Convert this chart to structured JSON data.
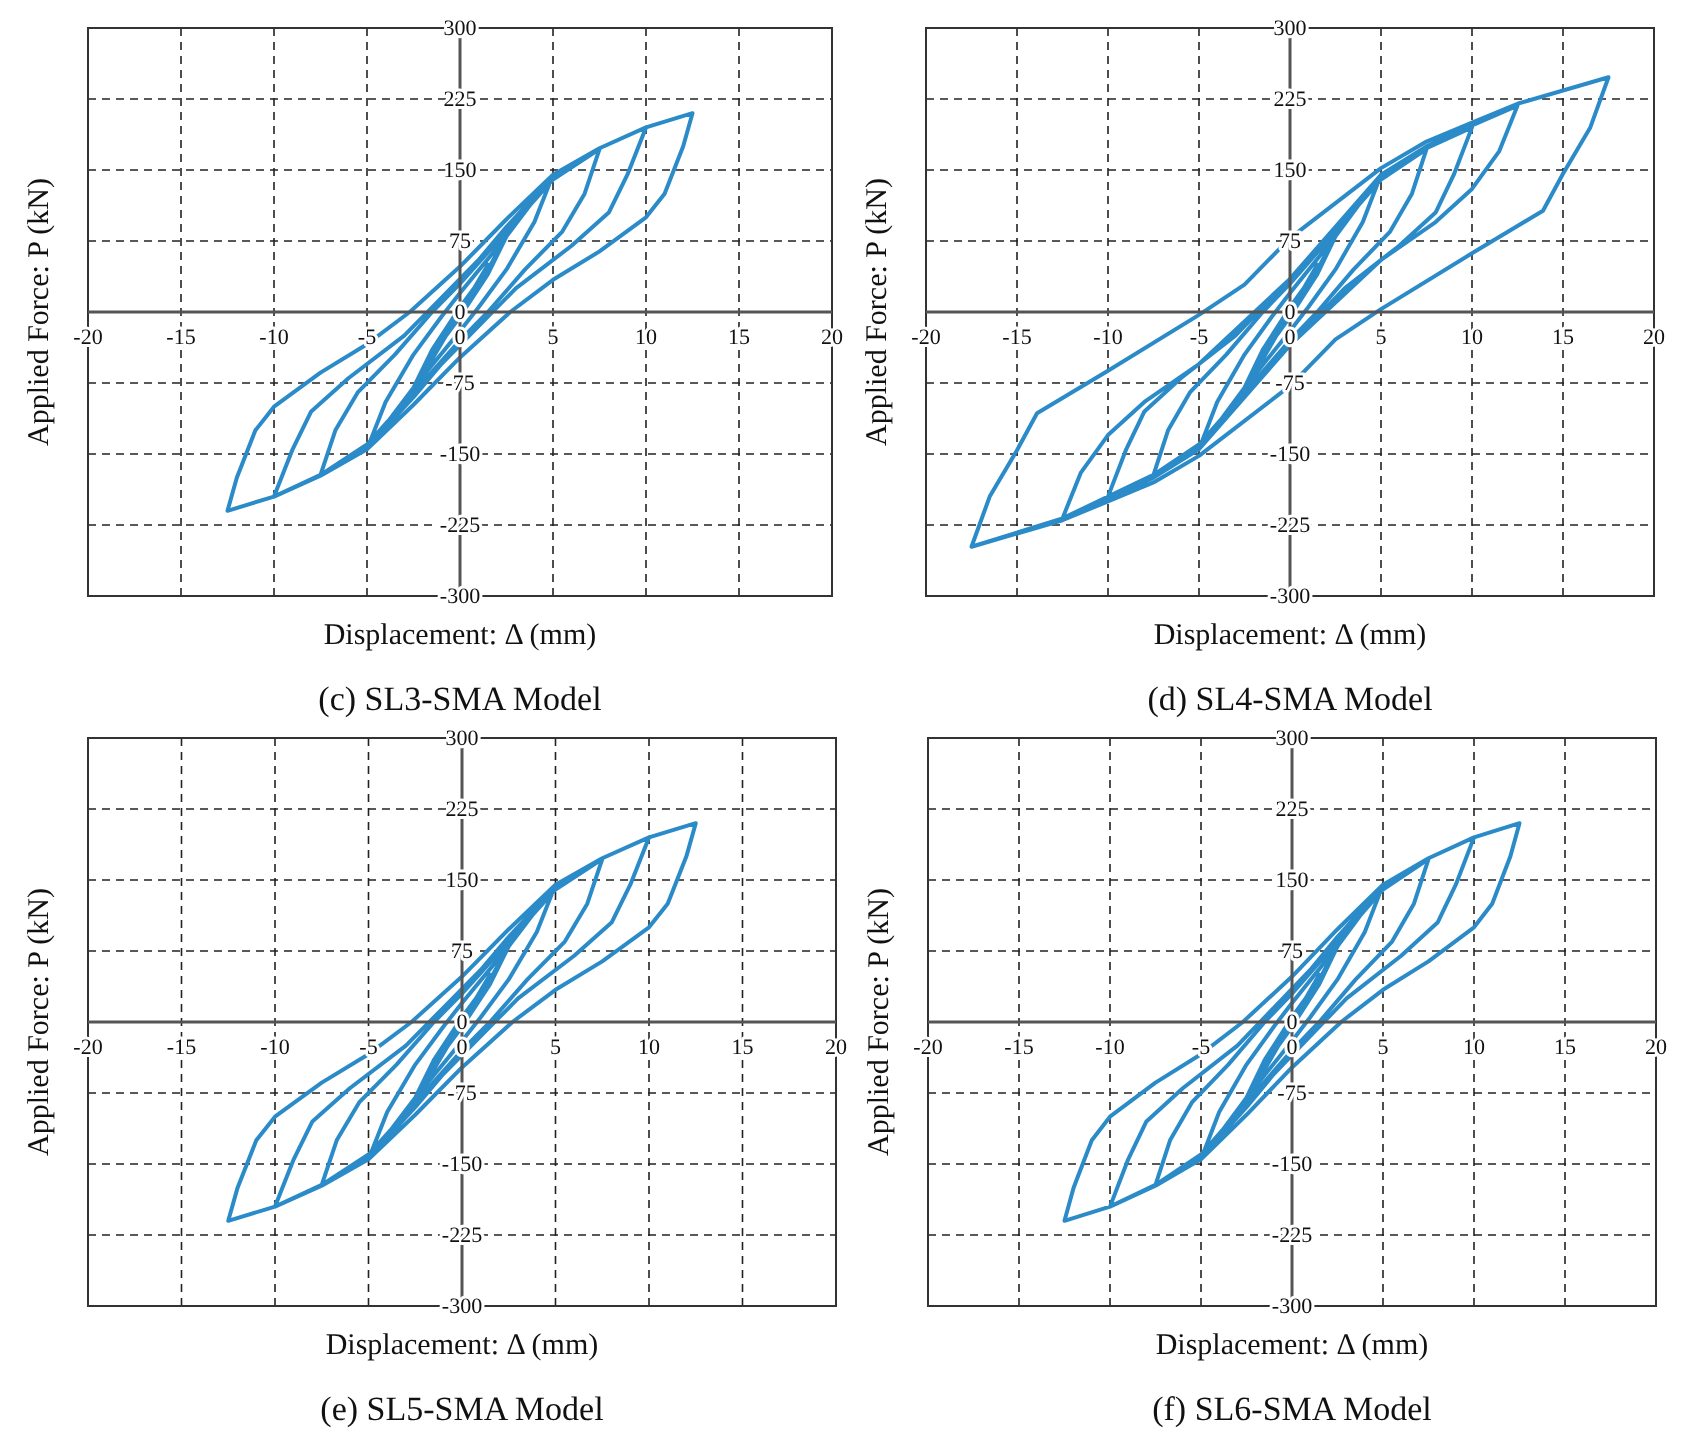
{
  "chart_data": [
    {
      "type": "line",
      "title": "(c) SL3-SMA Model",
      "xlabel": "Displacement: Δ (mm)",
      "ylabel": "Applied Force: P (kN)",
      "xlim": [
        -20,
        20
      ],
      "xticks": [
        -20,
        -15,
        -10,
        -5,
        0,
        5,
        10,
        15,
        20
      ],
      "ylim": [
        -300,
        300
      ],
      "yticks": [
        -300,
        -225,
        -150,
        -75,
        0,
        75,
        150,
        225,
        300
      ],
      "grid": true,
      "x": [
        0,
        -1.5,
        0,
        1.5,
        0,
        -1.5,
        -2.5,
        -1.5,
        0,
        1.5,
        2.5,
        1.5,
        0,
        -1.5,
        -2.5,
        -5,
        -4,
        -2.5,
        -1,
        0,
        2.5,
        5,
        4,
        2.5,
        1,
        0,
        -2.5,
        -5,
        -7.5,
        -6.7,
        -5.5,
        -3.5,
        -1.5,
        0,
        2.5,
        5,
        7.5,
        6.7,
        5.5,
        3.5,
        1.5,
        0,
        -2.5,
        -5,
        -7.5,
        -10,
        -9,
        -8,
        -6,
        -3,
        -1,
        1,
        2.5,
        5,
        7.5,
        10,
        9,
        8,
        6,
        3,
        1,
        -1,
        -2.5,
        -5,
        -7.5,
        -10,
        -12.5,
        -12,
        -11,
        -10,
        -7.5,
        -5,
        -2.7,
        0,
        2.5,
        5,
        7.5,
        10,
        12.5,
        12,
        11,
        10,
        7.5,
        5,
        2.7,
        0,
        -2.5,
        -5,
        -7.5,
        -10,
        -12.5
      ],
      "series": [
        {
          "color": "#2b8bc8",
          "values": [
            0,
            -50,
            0,
            50,
            0,
            -50,
            -80,
            -40,
            5,
            45,
            80,
            40,
            -5,
            -45,
            -80,
            -145,
            -95,
            -45,
            -5,
            20,
            80,
            145,
            95,
            45,
            5,
            -20,
            -80,
            -145,
            -172,
            -125,
            -85,
            -45,
            0,
            30,
            85,
            140,
            172,
            125,
            85,
            45,
            0,
            -30,
            -85,
            -140,
            -172,
            -195,
            -145,
            -105,
            -70,
            -25,
            15,
            55,
            90,
            143,
            173,
            195,
            145,
            105,
            70,
            25,
            -15,
            -55,
            -90,
            -143,
            -173,
            -195,
            -210,
            -175,
            -125,
            -100,
            -64,
            -34,
            0,
            48,
            98,
            145,
            173,
            195,
            210,
            175,
            125,
            100,
            64,
            34,
            0,
            -48,
            -98,
            -145,
            -173,
            -195,
            -210
          ]
        }
      ]
    },
    {
      "type": "line",
      "title": "(d) SL4-SMA Model",
      "xlabel": "Displacement: Δ (mm)",
      "ylabel": "Applied Force: P (kN)",
      "xlim": [
        -20,
        20
      ],
      "xticks": [
        -20,
        -15,
        -10,
        -5,
        0,
        5,
        10,
        15,
        20
      ],
      "ylim": [
        -300,
        300
      ],
      "yticks": [
        -300,
        -225,
        -150,
        -75,
        0,
        75,
        150,
        225,
        300
      ],
      "grid": true,
      "x": [
        0,
        -1.5,
        0,
        1.5,
        0,
        -1.5,
        -2.5,
        -1.5,
        0,
        1.5,
        2.5,
        1.5,
        0,
        -1.5,
        -2.5,
        -5,
        -4,
        -2.5,
        -1,
        0,
        2.5,
        5,
        4,
        2.5,
        1,
        0,
        -2.5,
        -5,
        -7.5,
        -6.7,
        -5.5,
        -3.5,
        -1.5,
        0,
        2.5,
        5,
        7.5,
        6.7,
        5.5,
        3.5,
        1.5,
        0,
        -2.5,
        -5,
        -7.5,
        -10,
        -9,
        -8,
        -6,
        -3,
        -1,
        1,
        2.5,
        5,
        7.5,
        10,
        9,
        8,
        6,
        3,
        1,
        -1,
        -2.5,
        -5,
        -7.5,
        -10,
        -12.5,
        -11.5,
        -10,
        -8,
        -5,
        -2.5,
        0,
        2.5,
        5,
        7.5,
        10,
        12.5,
        11.5,
        10,
        8,
        5,
        2.5,
        0,
        -2.5,
        -5,
        -7.5,
        -10,
        -12.5,
        -17.5,
        -16.5,
        -15,
        -13.9,
        -10,
        -5,
        -2.5,
        0,
        5,
        7.5,
        10,
        12.5,
        17.5,
        16.5,
        15,
        13.9,
        10,
        5,
        2.5,
        0,
        -5,
        -7.5,
        -10,
        -12.5,
        -17.5
      ],
      "series": [
        {
          "color": "#2b8bc8",
          "values": [
            0,
            -50,
            0,
            50,
            0,
            -50,
            -80,
            -40,
            5,
            45,
            80,
            40,
            -5,
            -45,
            -80,
            -145,
            -95,
            -45,
            -5,
            20,
            80,
            145,
            95,
            45,
            5,
            -20,
            -80,
            -145,
            -172,
            -125,
            -85,
            -45,
            0,
            30,
            85,
            140,
            172,
            125,
            85,
            45,
            0,
            -30,
            -85,
            -140,
            -172,
            -195,
            -145,
            -105,
            -70,
            -25,
            15,
            55,
            90,
            143,
            173,
            195,
            145,
            105,
            70,
            25,
            -15,
            -55,
            -90,
            -143,
            -173,
            -195,
            -218,
            -170,
            -130,
            -95,
            -55,
            -10,
            35,
            90,
            145,
            175,
            197,
            218,
            170,
            130,
            95,
            55,
            10,
            -35,
            -90,
            -145,
            -175,
            -197,
            -218,
            -248,
            -195,
            -146,
            -107,
            -62,
            -3,
            29,
            78,
            152,
            180,
            200,
            220,
            248,
            195,
            146,
            107,
            62,
            3,
            -29,
            -78,
            -152,
            -180,
            -200,
            -220,
            -248
          ]
        }
      ]
    },
    {
      "type": "line",
      "title": "(e) SL5-SMA Model",
      "xlabel": "Displacement: Δ (mm)",
      "ylabel": "Applied Force: P (kN)",
      "xlim": [
        -20,
        20
      ],
      "xticks": [
        -20,
        -15,
        -10,
        -5,
        0,
        5,
        10,
        15,
        20
      ],
      "ylim": [
        -300,
        300
      ],
      "yticks": [
        -300,
        -225,
        -150,
        -75,
        0,
        75,
        150,
        225,
        300
      ],
      "grid": true,
      "x": [
        0,
        -1.5,
        0,
        1.5,
        0,
        -1.5,
        -2.5,
        -1.5,
        0,
        1.5,
        2.5,
        1.5,
        0,
        -1.5,
        -2.5,
        -5,
        -4,
        -2.5,
        -1,
        0,
        2.5,
        5,
        4,
        2.5,
        1,
        0,
        -2.5,
        -5,
        -7.5,
        -6.7,
        -5.5,
        -3.5,
        -1.5,
        0,
        2.5,
        5,
        7.5,
        6.7,
        5.5,
        3.5,
        1.5,
        0,
        -2.5,
        -5,
        -7.5,
        -10,
        -9,
        -8,
        -6,
        -3,
        -1,
        1,
        2.5,
        5,
        7.5,
        10,
        9,
        8,
        6,
        3,
        1,
        -1,
        -2.5,
        -5,
        -7.5,
        -10,
        -12.5,
        -12,
        -11,
        -10,
        -7.5,
        -5,
        -2.7,
        0,
        2.5,
        5,
        7.5,
        10,
        12.5,
        12,
        11,
        10,
        7.5,
        5,
        2.7,
        0,
        -2.5,
        -5,
        -7.5,
        -10,
        -12.5
      ],
      "series": [
        {
          "color": "#2b8bc8",
          "values": [
            0,
            -50,
            0,
            50,
            0,
            -50,
            -80,
            -40,
            5,
            45,
            80,
            40,
            -5,
            -45,
            -80,
            -145,
            -95,
            -45,
            -5,
            20,
            80,
            145,
            95,
            45,
            5,
            -20,
            -80,
            -145,
            -172,
            -125,
            -85,
            -45,
            0,
            30,
            85,
            140,
            172,
            125,
            85,
            45,
            0,
            -30,
            -85,
            -140,
            -172,
            -195,
            -145,
            -105,
            -70,
            -25,
            15,
            55,
            90,
            143,
            173,
            195,
            145,
            105,
            70,
            25,
            -15,
            -55,
            -90,
            -143,
            -173,
            -195,
            -210,
            -175,
            -125,
            -100,
            -64,
            -34,
            0,
            48,
            98,
            145,
            173,
            195,
            210,
            175,
            125,
            100,
            64,
            34,
            0,
            -48,
            -98,
            -145,
            -173,
            -195,
            -210
          ]
        }
      ]
    },
    {
      "type": "line",
      "title": "(f) SL6-SMA Model",
      "xlabel": "Displacement: Δ (mm)",
      "ylabel": "Applied Force: P (kN)",
      "xlim": [
        -20,
        20
      ],
      "xticks": [
        -20,
        -15,
        -10,
        -5,
        0,
        5,
        10,
        15,
        20
      ],
      "ylim": [
        -300,
        300
      ],
      "yticks": [
        -300,
        -225,
        -150,
        -75,
        0,
        75,
        150,
        225,
        300
      ],
      "grid": true,
      "x": [
        0,
        -1.5,
        0,
        1.5,
        0,
        -1.5,
        -2.5,
        -1.5,
        0,
        1.5,
        2.5,
        1.5,
        0,
        -1.5,
        -2.5,
        -5,
        -4,
        -2.5,
        -1,
        0,
        2.5,
        5,
        4,
        2.5,
        1,
        0,
        -2.5,
        -5,
        -7.5,
        -6.7,
        -5.5,
        -3.5,
        -1.5,
        0,
        2.5,
        5,
        7.5,
        6.7,
        5.5,
        3.5,
        1.5,
        0,
        -2.5,
        -5,
        -7.5,
        -10,
        -9,
        -8,
        -6,
        -3,
        -1,
        1,
        2.5,
        5,
        7.5,
        10,
        9,
        8,
        6,
        3,
        1,
        -1,
        -2.5,
        -5,
        -7.5,
        -10,
        -12.5,
        -12,
        -11,
        -10,
        -7.5,
        -5,
        -2.7,
        0,
        2.5,
        5,
        7.5,
        10,
        12.5,
        12,
        11,
        10,
        7.5,
        5,
        2.7,
        0,
        -2.5,
        -5,
        -7.5,
        -10,
        -12.5
      ],
      "series": [
        {
          "color": "#2b8bc8",
          "values": [
            0,
            -50,
            0,
            50,
            0,
            -50,
            -80,
            -40,
            5,
            45,
            80,
            40,
            -5,
            -45,
            -80,
            -145,
            -95,
            -45,
            -5,
            20,
            80,
            145,
            95,
            45,
            5,
            -20,
            -80,
            -145,
            -172,
            -125,
            -85,
            -45,
            0,
            30,
            85,
            140,
            172,
            125,
            85,
            45,
            0,
            -30,
            -85,
            -140,
            -172,
            -195,
            -145,
            -105,
            -70,
            -25,
            15,
            55,
            90,
            143,
            173,
            195,
            145,
            105,
            70,
            25,
            -15,
            -55,
            -90,
            -143,
            -173,
            -195,
            -210,
            -175,
            -125,
            -100,
            -64,
            -34,
            0,
            48,
            98,
            145,
            173,
            195,
            210,
            175,
            125,
            100,
            64,
            34,
            0,
            -48,
            -98,
            -145,
            -173,
            -195,
            -210
          ]
        }
      ]
    }
  ]
}
